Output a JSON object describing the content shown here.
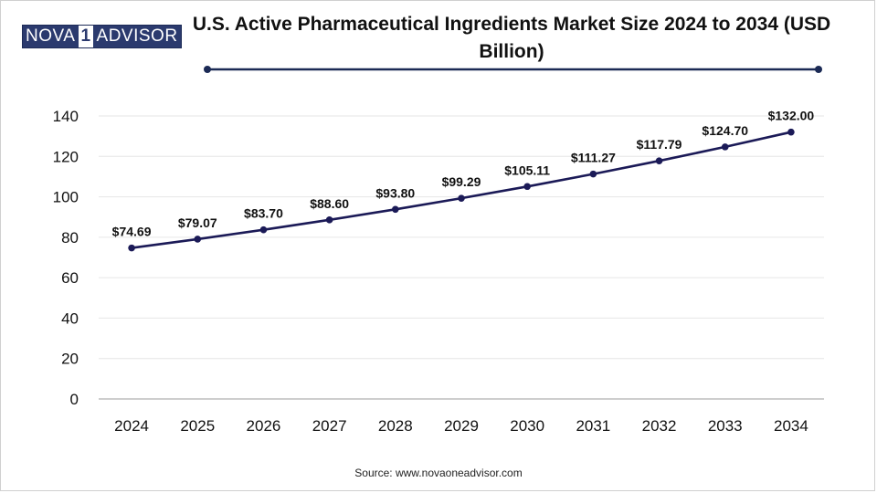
{
  "logo": {
    "part1": "NOVA",
    "part2": "1",
    "part3": "ADVISOR"
  },
  "title": "U.S. Active Pharmaceutical Ingredients Market Size 2024 to 2034 (USD Billion)",
  "source": "Source: www.novaoneadvisor.com",
  "colors": {
    "line": "#1b1a57",
    "point": "#1b1a57",
    "grid": "#e6e6e6",
    "axis": "#bdbdbd",
    "text": "#111111"
  },
  "chart_data": {
    "type": "line",
    "title": "U.S. Active Pharmaceutical Ingredients Market Size 2024 to 2034 (USD Billion)",
    "xlabel": "",
    "ylabel": "",
    "categories": [
      "2024",
      "2025",
      "2026",
      "2027",
      "2028",
      "2029",
      "2030",
      "2031",
      "2032",
      "2033",
      "2034"
    ],
    "values": [
      74.69,
      79.07,
      83.7,
      88.6,
      93.8,
      99.29,
      105.11,
      111.27,
      117.79,
      124.7,
      132.0
    ],
    "labels": [
      "$74.69",
      "$79.07",
      "$83.70",
      "$88.60",
      "$93.80",
      "$99.29",
      "$105.11",
      "$111.27",
      "$117.79",
      "$124.70",
      "$132.00"
    ],
    "ylim": [
      0,
      140
    ],
    "yticks": [
      0,
      20,
      40,
      60,
      80,
      100,
      120,
      140
    ],
    "grid": true,
    "legend": "none"
  }
}
